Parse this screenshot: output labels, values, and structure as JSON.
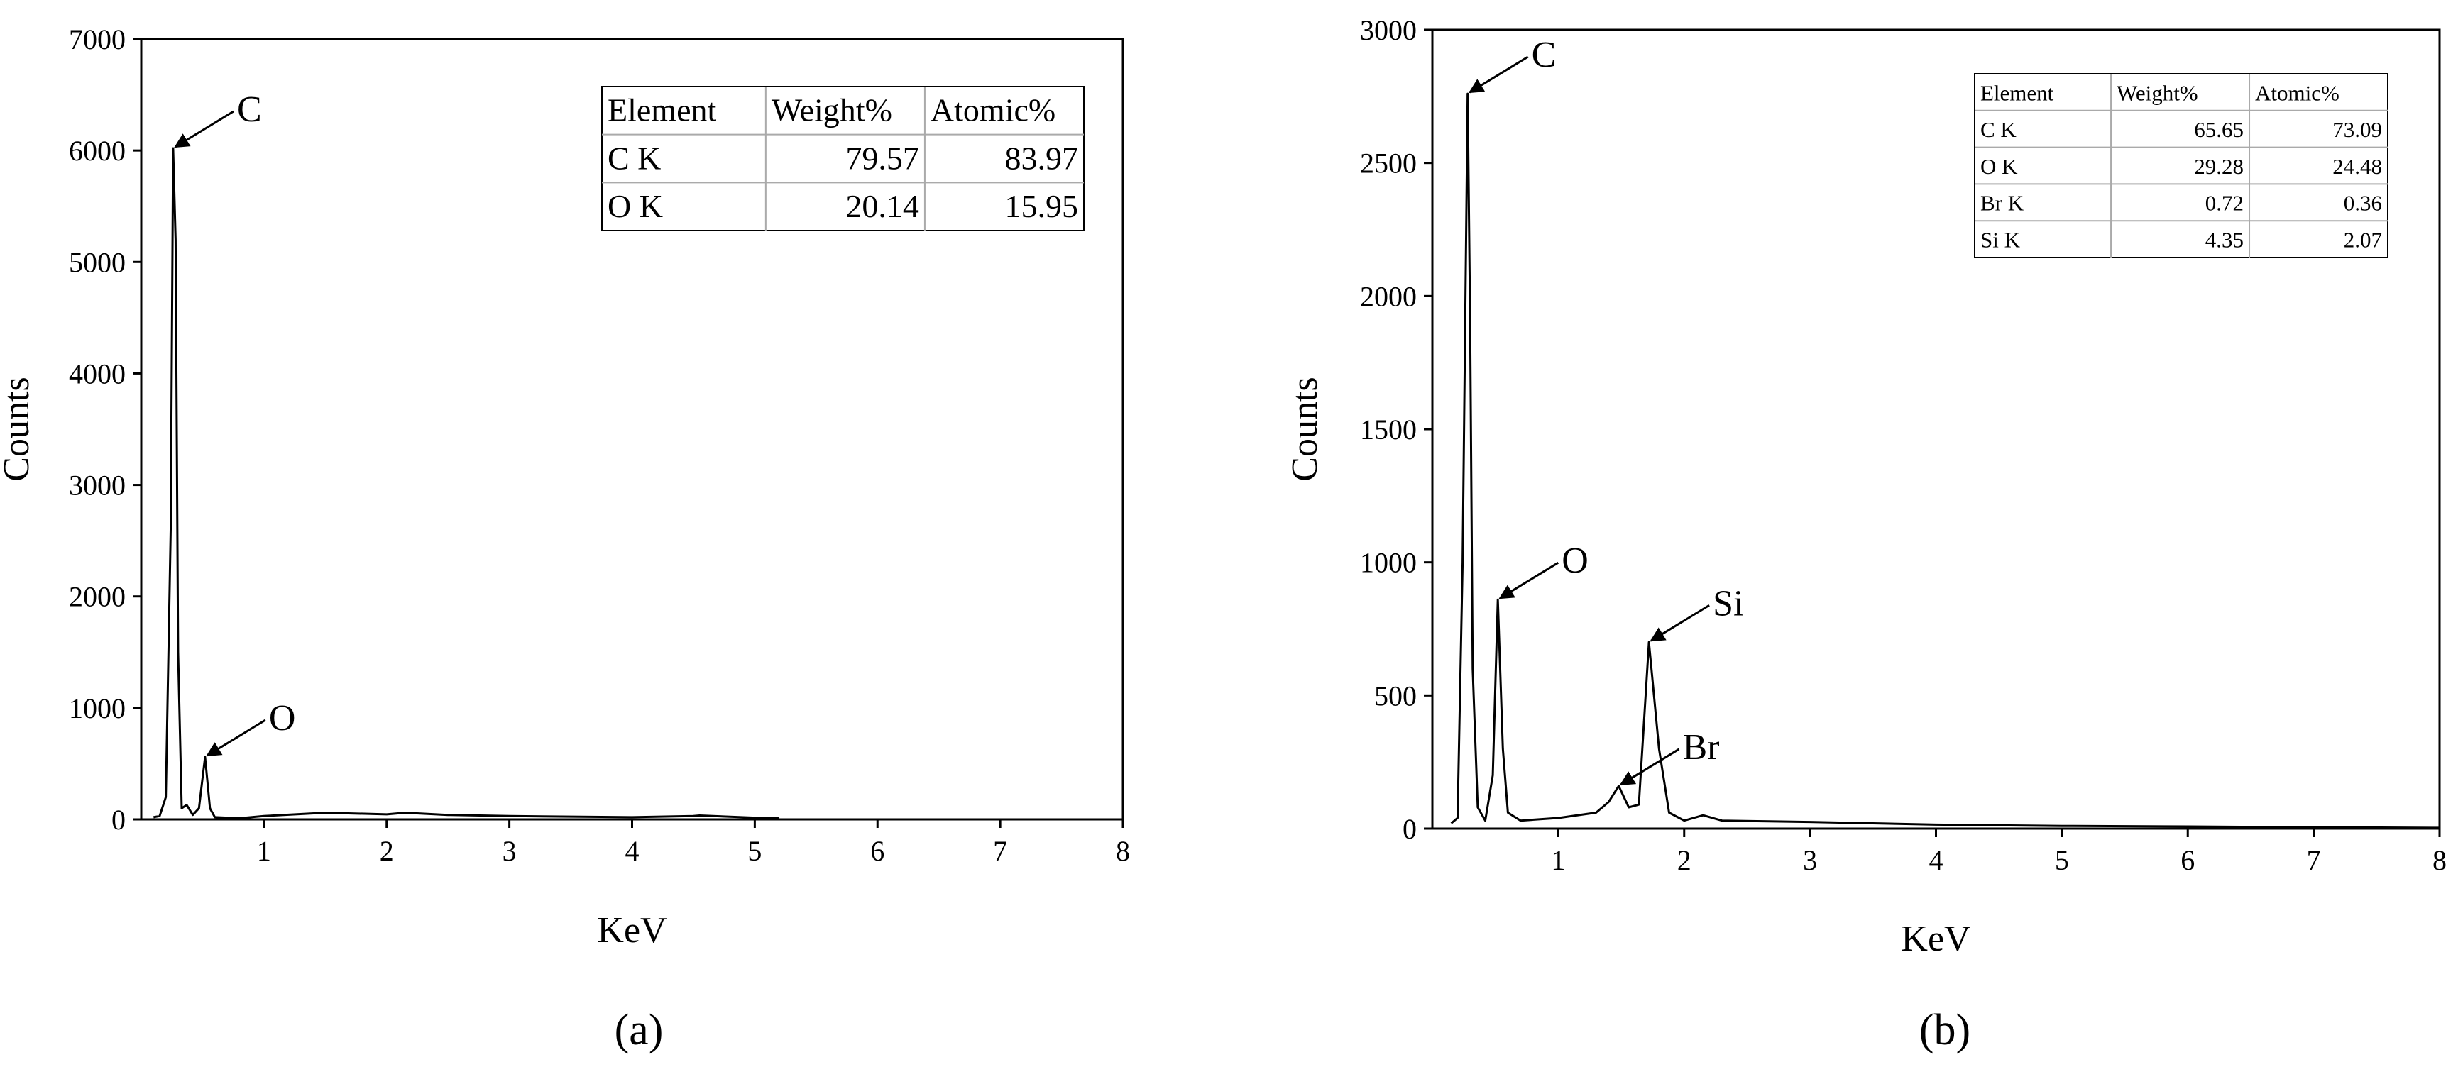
{
  "chart_data": [
    {
      "type": "line",
      "x_label": "KeV",
      "y_label": "Counts",
      "caption": "(a)",
      "color": "#000000",
      "xlim": [
        0,
        8
      ],
      "xticks": [
        1,
        2,
        3,
        4,
        5,
        6,
        7,
        8
      ],
      "ylim": [
        0,
        7000
      ],
      "yticks": [
        0,
        1000,
        2000,
        3000,
        4000,
        5000,
        6000,
        7000
      ],
      "x": [
        0.1,
        0.15,
        0.2,
        0.24,
        0.26,
        0.28,
        0.3,
        0.33,
        0.37,
        0.42,
        0.47,
        0.52,
        0.56,
        0.6,
        0.8,
        1,
        1.5,
        2,
        2.15,
        2.5,
        3,
        3.5,
        4,
        4.5,
        4.55,
        5,
        5.2
      ],
      "values": [
        20,
        30,
        200,
        2600,
        6020,
        5200,
        1500,
        100,
        130,
        40,
        100,
        560,
        100,
        20,
        10,
        30,
        60,
        45,
        60,
        40,
        30,
        25,
        20,
        30,
        35,
        15,
        10
      ],
      "annotations": [
        {
          "text": "C",
          "x": 0.26,
          "y": 6020
        },
        {
          "text": "O",
          "x": 0.52,
          "y": 560
        }
      ],
      "table": {
        "header": [
          "Element",
          "Weight%",
          "Atomic%"
        ],
        "rows": [
          [
            "C K",
            79.57,
            83.97
          ],
          [
            "O K",
            20.14,
            15.95
          ]
        ]
      }
    },
    {
      "type": "line",
      "x_label": "KeV",
      "y_label": "Counts",
      "caption": "(b)",
      "color": "#000000",
      "xlim": [
        0,
        8
      ],
      "xticks": [
        1,
        2,
        3,
        4,
        5,
        6,
        7,
        8
      ],
      "ylim": [
        0,
        3000
      ],
      "yticks": [
        0,
        500,
        1000,
        1500,
        2000,
        2500,
        3000
      ],
      "x": [
        0.15,
        0.2,
        0.24,
        0.28,
        0.3,
        0.32,
        0.36,
        0.42,
        0.48,
        0.52,
        0.56,
        0.6,
        0.7,
        1,
        1.3,
        1.4,
        1.48,
        1.56,
        1.64,
        1.72,
        1.8,
        1.88,
        2,
        2.15,
        2.3,
        3,
        4,
        5,
        6,
        7,
        8
      ],
      "values": [
        20,
        40,
        1000,
        2760,
        1900,
        600,
        80,
        30,
        200,
        860,
        300,
        60,
        30,
        40,
        60,
        100,
        160,
        80,
        90,
        700,
        300,
        60,
        30,
        50,
        30,
        25,
        15,
        10,
        8,
        5,
        3
      ],
      "annotations": [
        {
          "text": "C",
          "x": 0.28,
          "y": 2760
        },
        {
          "text": "O",
          "x": 0.52,
          "y": 860
        },
        {
          "text": "Br",
          "x": 1.48,
          "y": 160
        },
        {
          "text": "Si",
          "x": 1.72,
          "y": 700
        }
      ],
      "table": {
        "header": [
          "Element",
          "Weight%",
          "Atomic%"
        ],
        "rows": [
          [
            "C K",
            65.65,
            73.09
          ],
          [
            "O K",
            29.28,
            24.48
          ],
          [
            "Br K",
            0.72,
            0.36
          ],
          [
            "Si K",
            4.35,
            2.07
          ]
        ]
      }
    }
  ]
}
